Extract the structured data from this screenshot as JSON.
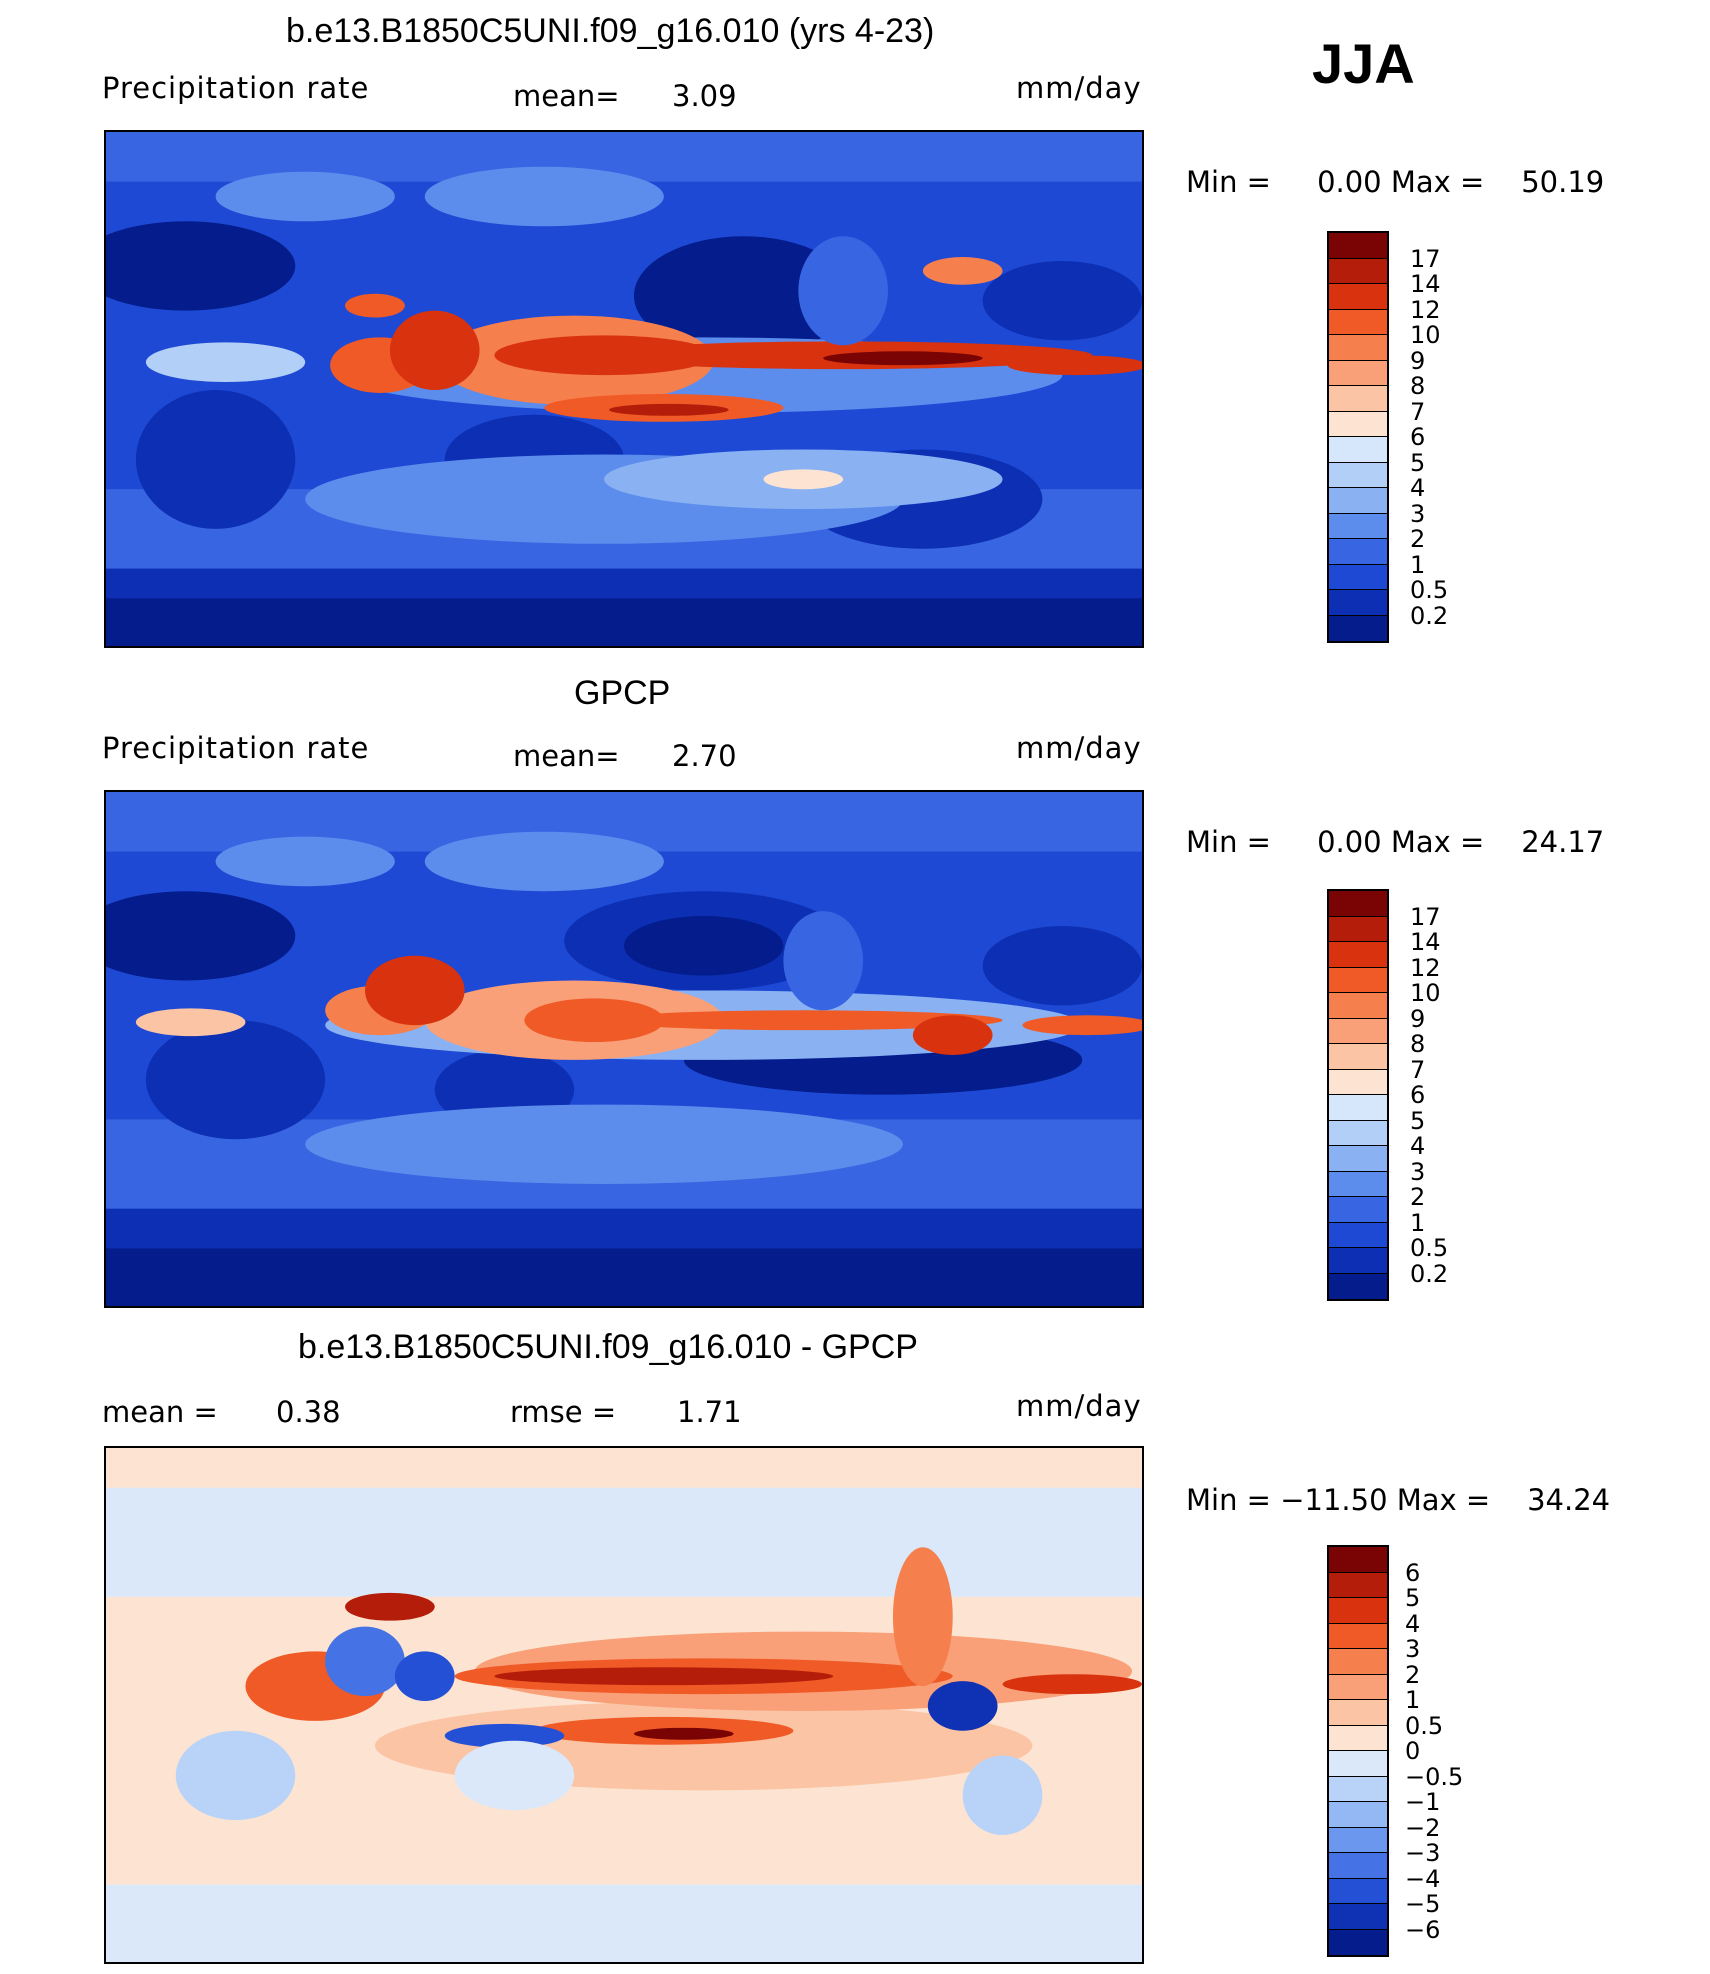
{
  "season": "JJA",
  "panels": [
    {
      "id": "model",
      "title": "b.e13.B1850C5UNI.f09_g16.010 (yrs 4-23)",
      "left_label": "Precipitation rate",
      "stat1": "mean=",
      "stat1_value": "3.09",
      "units": "mm/day",
      "minmax": "Min =     0.00 Max =    50.19",
      "colorbar_labels": [
        "17",
        "14",
        "12",
        "10",
        "9",
        "8",
        "7",
        "6",
        "5",
        "4",
        "3",
        "2",
        "1",
        "0.5",
        "0.2"
      ],
      "colors": [
        "#7a0403",
        "#b31d0a",
        "#d8330e",
        "#ef5a26",
        "#f57f4d",
        "#f9a078",
        "#fbc4a4",
        "#fde4d2",
        "#d6e6fb",
        "#b1cff7",
        "#8ab1f2",
        "#5c8ded",
        "#3866e2",
        "#1e49d4",
        "#0c2fb3",
        "#041c8c"
      ]
    },
    {
      "id": "obs",
      "title": "GPCP",
      "left_label": "Precipitation rate",
      "stat1": "mean=",
      "stat1_value": "2.70",
      "units": "mm/day",
      "minmax": "Min =     0.00 Max =    24.17",
      "colorbar_labels": [
        "17",
        "14",
        "12",
        "10",
        "9",
        "8",
        "7",
        "6",
        "5",
        "4",
        "3",
        "2",
        "1",
        "0.5",
        "0.2"
      ],
      "colors": [
        "#7a0403",
        "#b31d0a",
        "#d8330e",
        "#ef5a26",
        "#f57f4d",
        "#f9a078",
        "#fbc4a4",
        "#fde4d2",
        "#d6e6fb",
        "#b1cff7",
        "#8ab1f2",
        "#5c8ded",
        "#3866e2",
        "#1e49d4",
        "#0c2fb3",
        "#041c8c"
      ]
    },
    {
      "id": "diff",
      "title": "b.e13.B1850C5UNI.f09_g16.010 - GPCP",
      "stat1": "mean =",
      "stat1_value": "0.38",
      "stat2": "rmse =",
      "stat2_value": "1.71",
      "units": "mm/day",
      "minmax": "Min = −11.50 Max =    34.24",
      "colorbar_labels": [
        "6",
        "5",
        "4",
        "3",
        "2",
        "1",
        "0.5",
        "0",
        "−0.5",
        "−1",
        "−2",
        "−3",
        "−4",
        "−5",
        "−6"
      ],
      "colors": [
        "#7a0403",
        "#b31d0a",
        "#d8330e",
        "#ef5a26",
        "#f57f4d",
        "#f9a078",
        "#fbc4a4",
        "#fde4d2",
        "#dbe8fa",
        "#b9d3f8",
        "#94b8f3",
        "#6c97ee",
        "#4572e4",
        "#2450d6",
        "#0f31b4",
        "#041c8c"
      ]
    }
  ]
}
